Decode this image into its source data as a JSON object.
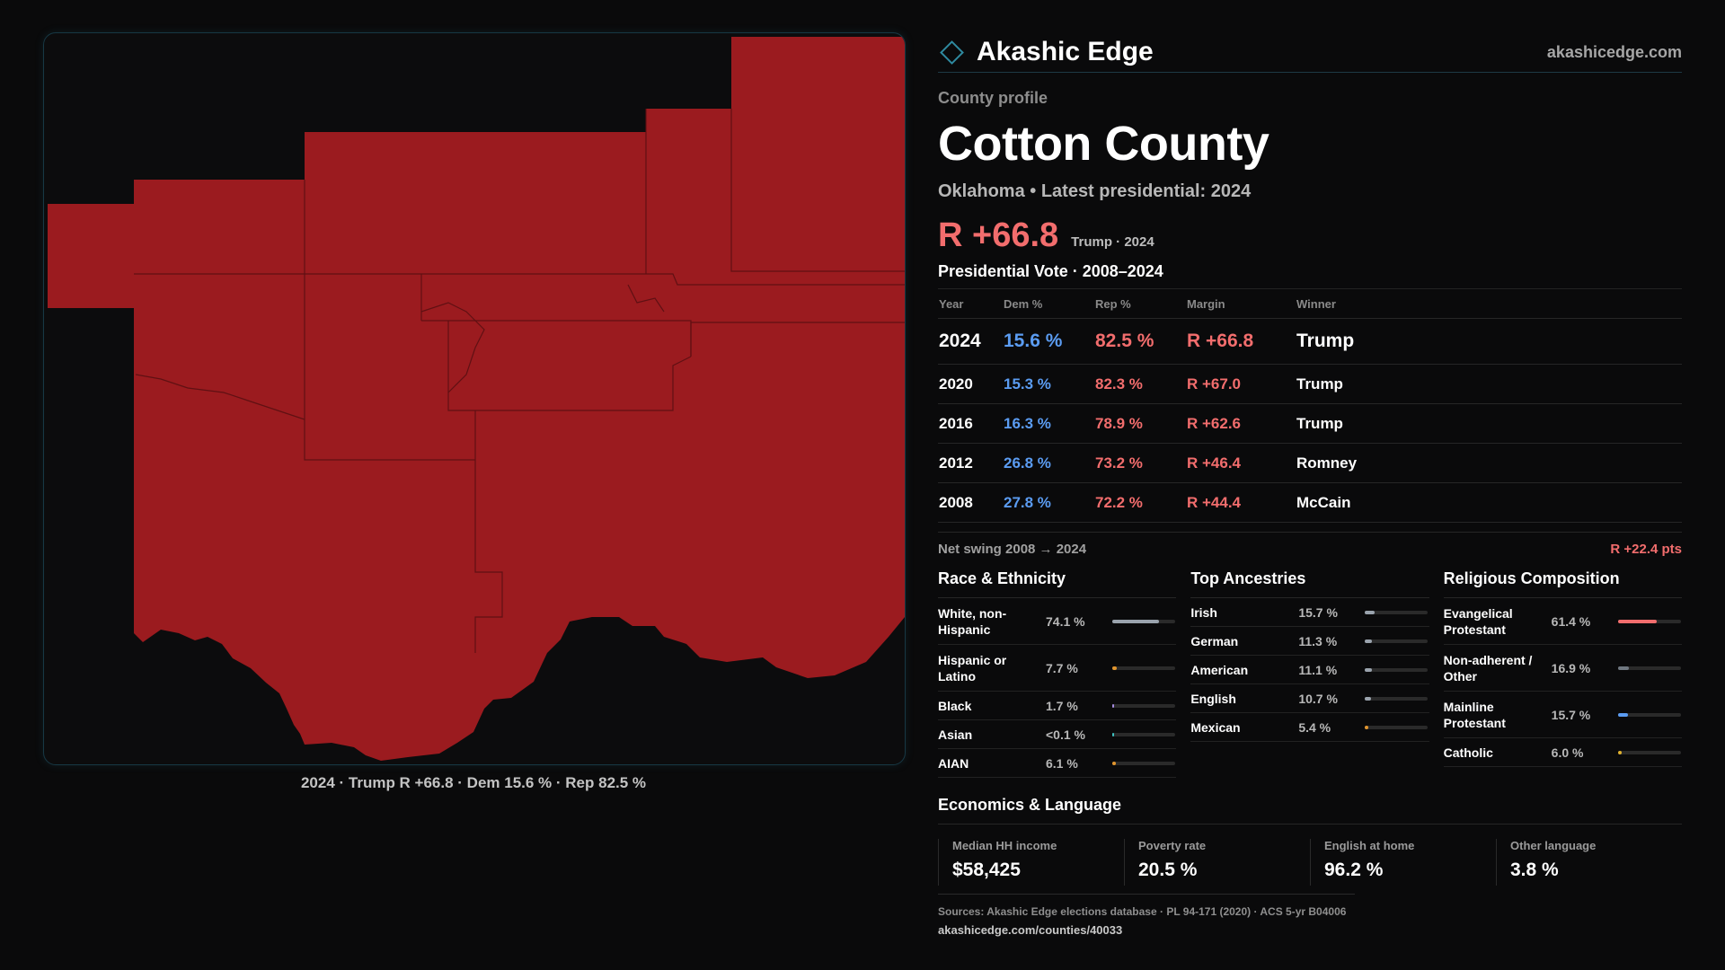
{
  "colors": {
    "accent": "#2f8aa0",
    "dem": "#5b9cf2",
    "rep": "#f26d6d",
    "county_fill": "#9b1b1f"
  },
  "map": {
    "caption": "2024 · Trump R +66.8 · Dem 15.6 % · Rep 82.5 %"
  },
  "header": {
    "brand_icon": "diamond-icon",
    "brand_name": "Akashic Edge",
    "url": "akashicedge.com"
  },
  "profile": {
    "kicker": "County profile",
    "title": "Cotton County",
    "subtitle": "Oklahoma • Latest presidential: 2024",
    "headline_margin": "R +66.8",
    "headline_sub": "Trump · 2024"
  },
  "votes": {
    "title": "Presidential Vote · 2008–2024",
    "headers": [
      "Year",
      "Dem %",
      "Rep %",
      "Margin",
      "Winner"
    ],
    "rows": [
      {
        "year": "2024",
        "dem": "15.6 %",
        "rep": "82.5 %",
        "margin": "R +66.8",
        "winner": "Trump"
      },
      {
        "year": "2020",
        "dem": "15.3 %",
        "rep": "82.3 %",
        "margin": "R +67.0",
        "winner": "Trump"
      },
      {
        "year": "2016",
        "dem": "16.3 %",
        "rep": "78.9 %",
        "margin": "R +62.6",
        "winner": "Trump"
      },
      {
        "year": "2012",
        "dem": "26.8 %",
        "rep": "73.2 %",
        "margin": "R +46.4",
        "winner": "Romney"
      },
      {
        "year": "2008",
        "dem": "27.8 %",
        "rep": "72.2 %",
        "margin": "R +44.4",
        "winner": "McCain"
      }
    ],
    "swing_label": "Net swing 2008 → 2024",
    "swing_value": "R +22.4 pts"
  },
  "race": {
    "title": "Race & Ethnicity",
    "items": [
      {
        "label": "White, non-Hispanic",
        "value": "74.1 %",
        "pct": 74.1,
        "color": "#9aa3ad"
      },
      {
        "label": "Hispanic or Latino",
        "value": "7.7 %",
        "pct": 7.7,
        "color": "#e0952e"
      },
      {
        "label": "Black",
        "value": "1.7 %",
        "pct": 1.7,
        "color": "#a58be0"
      },
      {
        "label": "Asian",
        "value": "<0.1 %",
        "pct": 0.1,
        "color": "#3ec2c2"
      },
      {
        "label": "AIAN",
        "value": "6.1 %",
        "pct": 6.1,
        "color": "#e0952e"
      }
    ]
  },
  "ancestry": {
    "title": "Top Ancestries",
    "items": [
      {
        "label": "Irish",
        "value": "15.7 %",
        "pct": 15.7,
        "color": "#9aa3ad"
      },
      {
        "label": "German",
        "value": "11.3 %",
        "pct": 11.3,
        "color": "#9aa3ad"
      },
      {
        "label": "American",
        "value": "11.1 %",
        "pct": 11.1,
        "color": "#9aa3ad"
      },
      {
        "label": "English",
        "value": "10.7 %",
        "pct": 10.7,
        "color": "#9aa3ad"
      },
      {
        "label": "Mexican",
        "value": "5.4 %",
        "pct": 5.4,
        "color": "#e0952e"
      }
    ]
  },
  "religion": {
    "title": "Religious Composition",
    "items": [
      {
        "label": "Evangelical Protestant",
        "value": "61.4 %",
        "pct": 61.4,
        "color": "#f26d6d"
      },
      {
        "label": "Non-adherent / Other",
        "value": "16.9 %",
        "pct": 16.9,
        "color": "#6f7780"
      },
      {
        "label": "Mainline Protestant",
        "value": "15.7 %",
        "pct": 15.7,
        "color": "#5b9cf2"
      },
      {
        "label": "Catholic",
        "value": "6.0 %",
        "pct": 6.0,
        "color": "#e0b22e"
      }
    ]
  },
  "economics": {
    "title": "Economics & Language",
    "items": [
      {
        "label": "Median HH income",
        "value": "$58,425"
      },
      {
        "label": "Poverty rate",
        "value": "20.5 %"
      },
      {
        "label": "English at home",
        "value": "96.2 %"
      },
      {
        "label": "Other language",
        "value": "3.8 %"
      }
    ]
  },
  "footer": {
    "sources": "Sources: Akashic Edge elections database · PL 94-171 (2020) · ACS 5-yr B04006",
    "url": "akashicedge.com/counties/40033"
  }
}
